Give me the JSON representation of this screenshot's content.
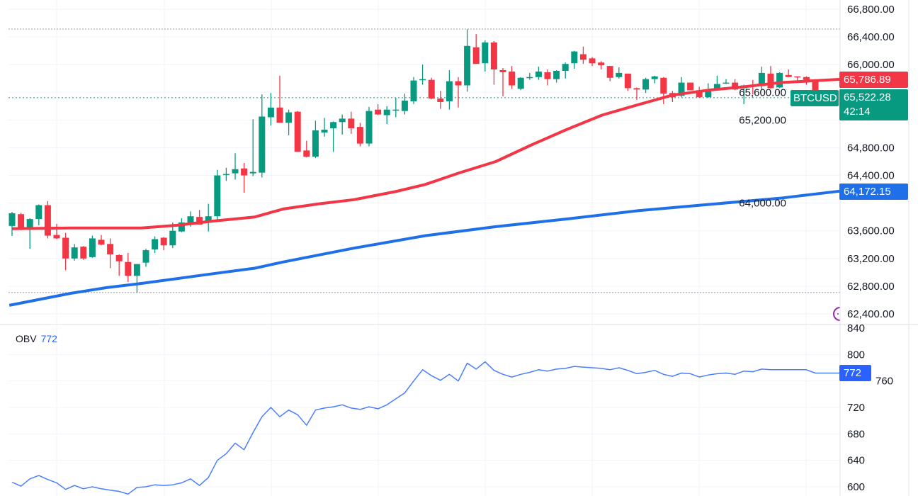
{
  "symbol": "BTCUSD",
  "colors": {
    "up": "#089981",
    "down": "#f23645",
    "ma_fast": "#f23645",
    "ma_slow": "#1e6fe8",
    "obv": "#4a7dff",
    "obv_tag": "#2962ff",
    "alert_icon": "#9c27b0"
  },
  "price_pane": {
    "tick_labels": [
      "66,800.00",
      "66,400.00",
      "66,000.00",
      "65,600.00",
      "65,200.00",
      "64,800.00",
      "64,400.00",
      "64,000.00",
      "63,600.00",
      "63,200.00",
      "62,800.00",
      "62,400.00"
    ],
    "last_price_label": "65,522.28",
    "countdown": "42:14",
    "ma_fast_label": "65,786.89",
    "ma_slow_label": "64,172.15",
    "high_line": 66514,
    "low_line": 62708
  },
  "obv_pane": {
    "title": "OBV",
    "value": "772",
    "tick_labels": [
      "840",
      "800",
      "760",
      "720",
      "680",
      "640",
      "600"
    ]
  },
  "chart_data": [
    {
      "type": "candlestick",
      "ylim": [
        62400,
        66800
      ],
      "candles_ohlc": [
        [
          63670,
          63874,
          63526,
          63854
        ],
        [
          63840,
          63860,
          63610,
          63630
        ],
        [
          63630,
          63780,
          63340,
          63770
        ],
        [
          63770,
          63980,
          63680,
          63970
        ],
        [
          63970,
          64030,
          63490,
          63530
        ],
        [
          63540,
          63700,
          63480,
          63490
        ],
        [
          63500,
          63570,
          63030,
          63200
        ],
        [
          63200,
          63410,
          63170,
          63360
        ],
        [
          63370,
          63380,
          63180,
          63200
        ],
        [
          63220,
          63530,
          63210,
          63490
        ],
        [
          63470,
          63540,
          63390,
          63400
        ],
        [
          63410,
          63490,
          63060,
          63260
        ],
        [
          63250,
          63260,
          62950,
          63160
        ],
        [
          63150,
          63280,
          62860,
          62950
        ],
        [
          62950,
          63120,
          62710,
          63120
        ],
        [
          63140,
          63340,
          63080,
          63320
        ],
        [
          63330,
          63520,
          63280,
          63480
        ],
        [
          63500,
          63510,
          63320,
          63390
        ],
        [
          63390,
          63720,
          63350,
          63600
        ],
        [
          63590,
          63780,
          63580,
          63720
        ],
        [
          63720,
          63880,
          63660,
          63810
        ],
        [
          63800,
          63900,
          63690,
          63690
        ],
        [
          63740,
          63990,
          63590,
          63810
        ],
        [
          63810,
          64480,
          63760,
          64400
        ],
        [
          64410,
          64510,
          64320,
          64420
        ],
        [
          64430,
          64720,
          64340,
          64490
        ],
        [
          64500,
          64580,
          64150,
          64400
        ],
        [
          64430,
          65210,
          64390,
          64450
        ],
        [
          64440,
          65570,
          64370,
          65250
        ],
        [
          65240,
          65590,
          65120,
          65380
        ],
        [
          65380,
          65840,
          65160,
          65160
        ],
        [
          65160,
          65350,
          64980,
          65310
        ],
        [
          65320,
          65330,
          64740,
          64740
        ],
        [
          64760,
          64900,
          64660,
          64670
        ],
        [
          64670,
          65190,
          64650,
          65050
        ],
        [
          65020,
          65230,
          64960,
          65060
        ],
        [
          65080,
          65180,
          64740,
          65170
        ],
        [
          65170,
          65280,
          64990,
          65220
        ],
        [
          65220,
          65320,
          65000,
          65080
        ],
        [
          65100,
          65160,
          64820,
          64860
        ],
        [
          64860,
          65390,
          64820,
          65330
        ],
        [
          65350,
          65430,
          65270,
          65280
        ],
        [
          65270,
          65400,
          65140,
          65350
        ],
        [
          65340,
          65520,
          65240,
          65350
        ],
        [
          65330,
          65580,
          65280,
          65480
        ],
        [
          65470,
          65820,
          65430,
          65770
        ],
        [
          65790,
          66000,
          65710,
          65790
        ],
        [
          65780,
          65810,
          65500,
          65510
        ],
        [
          65510,
          65620,
          65360,
          65460
        ],
        [
          65470,
          65920,
          65350,
          65760
        ],
        [
          65760,
          65820,
          65380,
          65700
        ],
        [
          65700,
          66510,
          65610,
          66270
        ],
        [
          66250,
          66440,
          66010,
          66010
        ],
        [
          66020,
          66350,
          65900,
          66320
        ],
        [
          66320,
          66340,
          65710,
          65930
        ],
        [
          65920,
          65950,
          65540,
          65890
        ],
        [
          65900,
          65980,
          65650,
          65700
        ],
        [
          65650,
          65820,
          65630,
          65810
        ],
        [
          65820,
          65880,
          65780,
          65820
        ],
        [
          65820,
          65970,
          65780,
          65900
        ],
        [
          65890,
          65930,
          65700,
          65790
        ],
        [
          65790,
          65920,
          65740,
          65910
        ],
        [
          65910,
          66030,
          65800,
          66010
        ],
        [
          66020,
          66200,
          65940,
          66190
        ],
        [
          66150,
          66260,
          66010,
          66070
        ],
        [
          66090,
          66110,
          65980,
          66020
        ],
        [
          66030,
          66050,
          65930,
          65990
        ],
        [
          65980,
          65980,
          65760,
          65810
        ],
        [
          65820,
          65960,
          65800,
          65880
        ],
        [
          65870,
          65870,
          65620,
          65660
        ],
        [
          65660,
          65670,
          65490,
          65640
        ],
        [
          65640,
          65810,
          65590,
          65790
        ],
        [
          65790,
          65840,
          65730,
          65830
        ],
        [
          65810,
          65820,
          65430,
          65580
        ],
        [
          65590,
          65620,
          65460,
          65530
        ],
        [
          65550,
          65820,
          65530,
          65740
        ],
        [
          65740,
          65740,
          65630,
          65630
        ],
        [
          65630,
          65680,
          65520,
          65530
        ],
        [
          65530,
          65730,
          65520,
          65620
        ],
        [
          65640,
          65840,
          65630,
          65720
        ],
        [
          65740,
          65790,
          65720,
          65740
        ],
        [
          65740,
          65790,
          65630,
          65640
        ],
        [
          65660,
          65710,
          65430,
          65700
        ],
        [
          65700,
          65780,
          65570,
          65680
        ],
        [
          65690,
          65970,
          65630,
          65880
        ],
        [
          65870,
          65980,
          65650,
          65660
        ],
        [
          65670,
          65890,
          65660,
          65880
        ],
        [
          65850,
          65930,
          65820,
          65820
        ],
        [
          65830,
          65830,
          65770,
          65820
        ],
        [
          65820,
          65830,
          65710,
          65780
        ],
        [
          65780,
          65780,
          65500,
          65522.28
        ]
      ],
      "ma_fast": [
        [
          0,
          63630
        ],
        [
          6.6,
          63640
        ],
        [
          14.5,
          63640
        ],
        [
          18.5,
          63680
        ],
        [
          22.5,
          63740
        ],
        [
          27.2,
          63800
        ],
        [
          30.4,
          63915
        ],
        [
          34.4,
          63990
        ],
        [
          38.3,
          64050
        ],
        [
          43.1,
          64170
        ],
        [
          46.3,
          64270
        ],
        [
          50.2,
          64440
        ],
        [
          54.2,
          64600
        ],
        [
          58.2,
          64840
        ],
        [
          62.1,
          65060
        ],
        [
          66.1,
          65270
        ],
        [
          70.1,
          65420
        ],
        [
          74,
          65560
        ],
        [
          78,
          65630
        ],
        [
          82,
          65680
        ],
        [
          86,
          65740
        ],
        [
          92.7,
          65786.89
        ]
      ],
      "ma_slow": [
        [
          -0.3,
          62524
        ],
        [
          6.6,
          62698
        ],
        [
          10.6,
          62780
        ],
        [
          14.5,
          62840
        ],
        [
          22.5,
          62980
        ],
        [
          27.2,
          63060
        ],
        [
          30.4,
          63150
        ],
        [
          38.3,
          63350
        ],
        [
          46.3,
          63530
        ],
        [
          54.2,
          63660
        ],
        [
          62.1,
          63770
        ],
        [
          70.1,
          63890
        ],
        [
          78,
          63980
        ],
        [
          86,
          64070
        ],
        [
          92.7,
          64172.15
        ]
      ]
    },
    {
      "type": "line",
      "title": "OBV",
      "ylim": [
        600,
        840
      ],
      "values": [
        607,
        601,
        612,
        617,
        611,
        606,
        596,
        602,
        597,
        600,
        597,
        595,
        593,
        589,
        599,
        600,
        603,
        602,
        603,
        606,
        612,
        602,
        614,
        640,
        650,
        666,
        656,
        682,
        706,
        720,
        706,
        716,
        709,
        693,
        716,
        719,
        721,
        724,
        719,
        717,
        721,
        718,
        724,
        733,
        742,
        760,
        777,
        768,
        761,
        770,
        760,
        787,
        778,
        789,
        776,
        770,
        766,
        770,
        773,
        777,
        775,
        778,
        779,
        782,
        781,
        780,
        779,
        777,
        780,
        776,
        771,
        773,
        776,
        770,
        767,
        772,
        771,
        766,
        769,
        771,
        772,
        770,
        775,
        774,
        778,
        777,
        777,
        777,
        777,
        777,
        772
      ]
    }
  ]
}
